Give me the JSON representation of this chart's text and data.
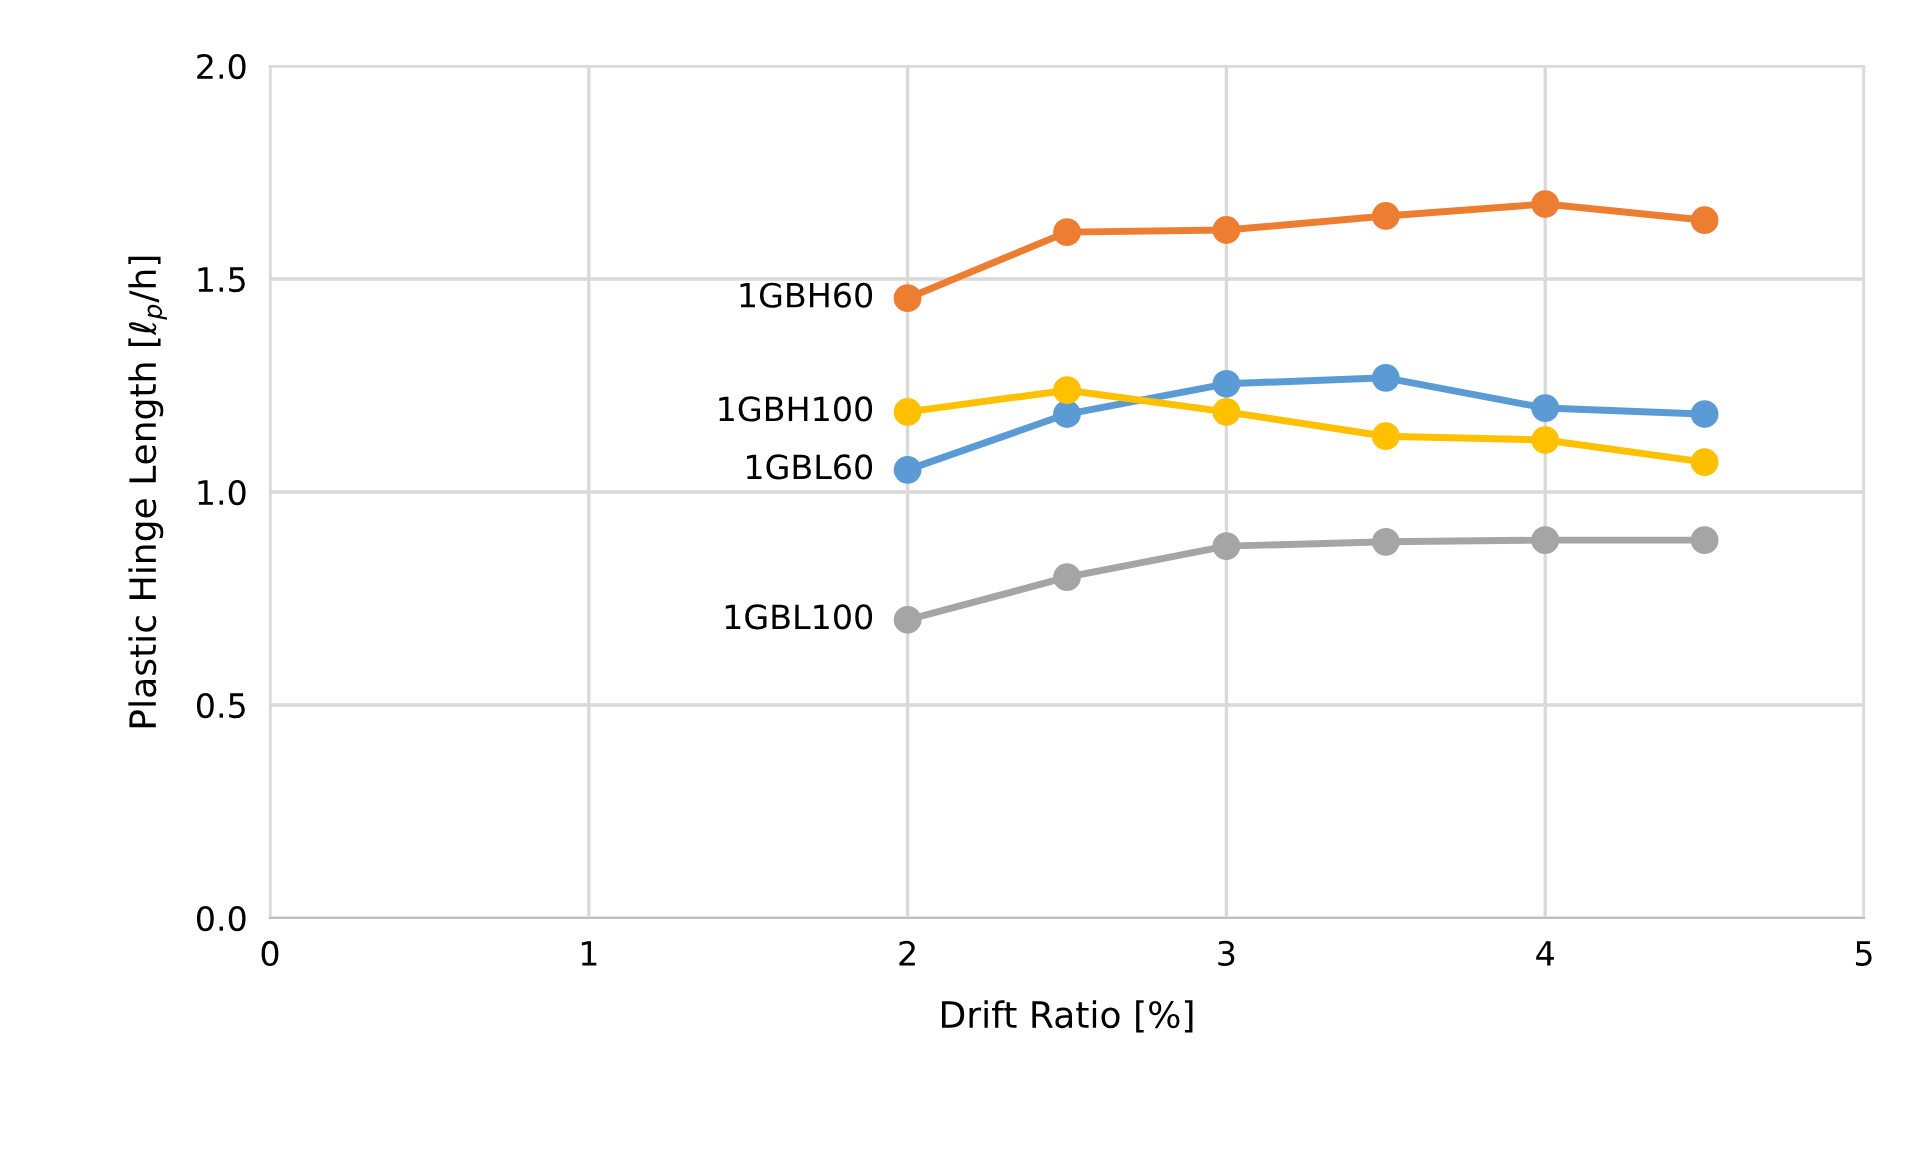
{
  "chart_data": {
    "type": "line",
    "xlabel": "Drift Ratio [%]",
    "ylabel": "Plastic Hinge Length [ℓ$_{p}$/h]",
    "x": [
      2,
      2.5,
      3,
      3.5,
      4,
      4.5
    ],
    "series": [
      {
        "name": "1GBH60",
        "color": "#ed7d31",
        "values": [
          1.455,
          1.61,
          1.615,
          1.648,
          1.676,
          1.638
        ]
      },
      {
        "name": "1GBL60",
        "color": "#5b9bd5",
        "values": [
          1.052,
          1.183,
          1.254,
          1.268,
          1.197,
          1.183
        ]
      },
      {
        "name": "1GBH100",
        "color": "#ffc000",
        "values": [
          1.188,
          1.239,
          1.188,
          1.131,
          1.122,
          1.07
        ]
      },
      {
        "name": "1GBL100",
        "color": "#a5a5a5",
        "values": [
          0.7,
          0.8,
          0.873,
          0.883,
          0.887,
          0.887
        ]
      }
    ],
    "xlim": [
      0,
      5
    ],
    "xticks": [
      0,
      1,
      2,
      3,
      4,
      5
    ],
    "ylim": [
      0,
      2
    ],
    "yticks": [
      {
        "value": 0,
        "label": "0.0"
      },
      {
        "value": 0.5,
        "label": "0.5"
      },
      {
        "value": 1,
        "label": "1.0"
      },
      {
        "value": 1.5,
        "label": "1.5"
      },
      {
        "value": 2,
        "label": "2.0"
      }
    ],
    "grid": true,
    "marker": "circle",
    "line_style": "solid"
  }
}
